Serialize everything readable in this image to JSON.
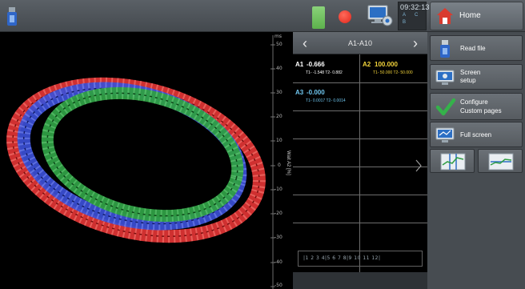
{
  "topbar": {
    "clock": "09:32:13",
    "clock_tags": [
      "A",
      "C",
      "B"
    ]
  },
  "home": {
    "label": "Home"
  },
  "plot": {
    "y_axis_title": "Wait A2 [%]",
    "y_axis_unit_top": "ms",
    "y_ticks": [
      "50",
      "40",
      "30",
      "20",
      "10",
      "0",
      "-10",
      "-20",
      "-30",
      "-40",
      "-50"
    ],
    "traces": [
      {
        "name": "red",
        "color": "#e53535"
      },
      {
        "name": "blue",
        "color": "#3b4fd6"
      },
      {
        "name": "green",
        "color": "#2f9e44"
      }
    ]
  },
  "channels": {
    "nav_title": "A1-A10",
    "items": [
      {
        "label": "A1",
        "value": "-0.666",
        "sub": "T1- -1.548  T2- 0.882",
        "color": "#ffffff"
      },
      {
        "label": "A2",
        "value": "100.000",
        "sub": "T1- 50.000  T2- 50.000",
        "color": "#f2d33a"
      },
      {
        "label": "A3",
        "value": "-0.000",
        "sub": "T1- 0.0017  T2- 0.0014",
        "color": "#6fc6ef"
      }
    ],
    "pager": "|1 2 3 4|5 6 7 8|9 10 11 12|"
  },
  "menu": {
    "read_file": "Read file",
    "screen_setup": [
      "Screen",
      "setup"
    ],
    "configure": [
      "Configure",
      "Custom pages"
    ],
    "full_screen": "Full screen"
  }
}
